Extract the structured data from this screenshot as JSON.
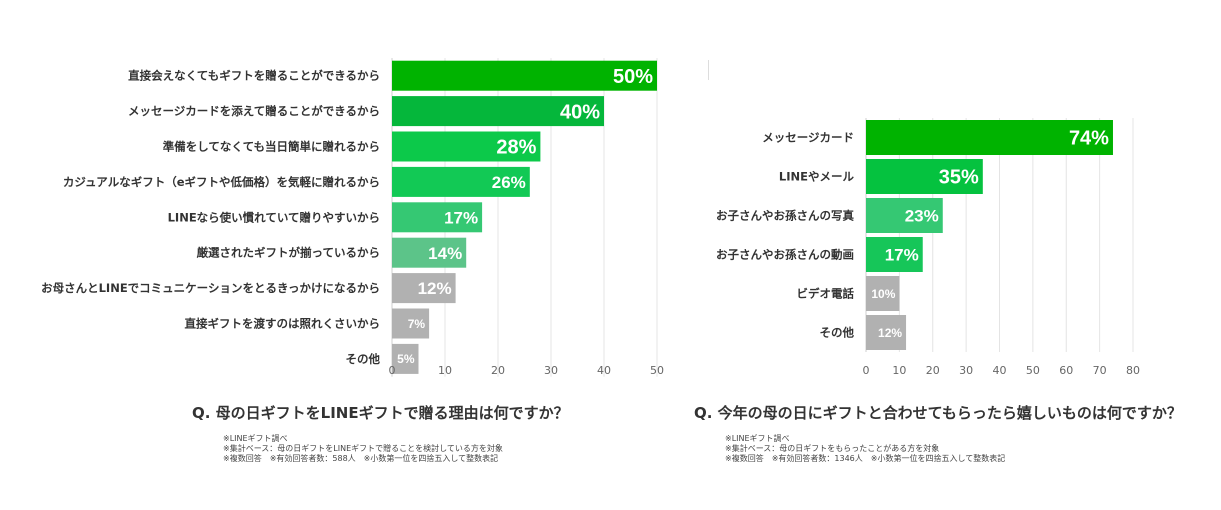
{
  "chart_data": [
    {
      "type": "bar",
      "orientation": "horizontal",
      "title": "Q.  母の日ギフトをLINEギフトで贈る理由は何ですか？",
      "categories": [
        "直接会えなくてもギフトを贈ることができるから",
        "メッセージカードを添えて贈ることができるから",
        "準備をしてなくても当日簡単に贈れるから",
        "カジュアルなギフト（eギフトや低価格）を気軽に贈れるから",
        "LINEなら使い慣れていて贈りやすいから",
        "厳選されたギフトが揃っているから",
        "お母さんとLINEでコミュニケーションをとるきっかけになるから",
        "直接ギフトを渡すのは照れくさいから",
        "その他"
      ],
      "values": [
        50,
        40,
        28,
        26,
        17,
        14,
        12,
        7,
        5
      ],
      "data_labels": [
        "50%",
        "40%",
        "28%",
        "26%",
        "17%",
        "14%",
        "12%",
        "7%",
        "5%"
      ],
      "bar_colors": [
        "#00b300",
        "#05b73b",
        "#0cc94a",
        "#12c955",
        "#35c873",
        "#5cc489",
        "#b1b1b1",
        "#b1b1b1",
        "#b1b1b1"
      ],
      "xlim": [
        0,
        50
      ],
      "xticks": [
        0,
        10,
        20,
        30,
        40,
        50
      ],
      "grid": true,
      "notes": [
        "※LINEギフト調べ",
        "※集計ベース：母の日ギフトをLINEギフトで贈ることを検討している方を対象",
        "※複数回答　※有効回答者数：588人　※小数第一位を四捨五入して整数表記"
      ]
    },
    {
      "type": "bar",
      "orientation": "horizontal",
      "title": "Q.  今年の母の日にギフトと合わせてもらったら嬉しいものは何ですか？",
      "categories": [
        "メッセージカード",
        "LINEやメール",
        "お子さんやお孫さんの写真",
        "お子さんやお孫さんの動画",
        "ビデオ電話",
        "その他"
      ],
      "values": [
        74,
        35,
        23,
        17,
        10,
        12
      ],
      "data_labels": [
        "74%",
        "35%",
        "23%",
        "17%",
        "10%",
        "12%"
      ],
      "bar_colors": [
        "#00b300",
        "#05c23f",
        "#35c873",
        "#16c659",
        "#b1b1b1",
        "#b1b1b1"
      ],
      "xlim": [
        0,
        80
      ],
      "xticks": [
        0,
        10,
        20,
        30,
        40,
        50,
        60,
        70,
        80
      ],
      "grid": true,
      "notes": [
        "※LINEギフト調べ",
        "※集計ベース：母の日ギフトをもらったことがある方を対象",
        "※複数回答　※有効回答者数：1346人　※小数第一位を四捨五入して整数表記"
      ]
    }
  ]
}
